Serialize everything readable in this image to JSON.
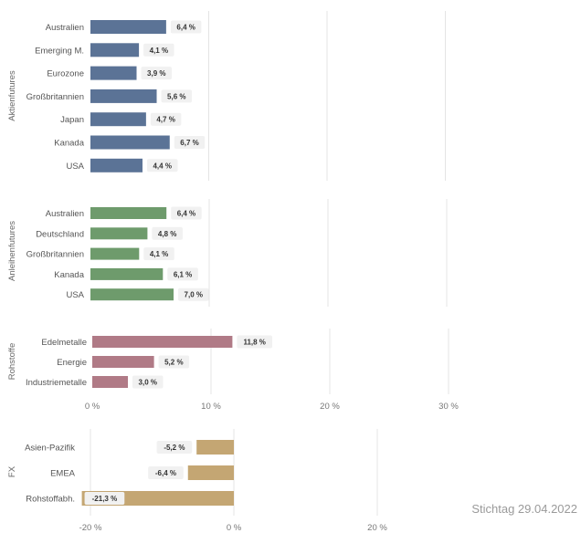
{
  "footnote": "Stichtag 29.04.2022",
  "colors": {
    "Aktienfutures": "#5b7396",
    "Anleihenfutures": "#6e9b6c",
    "Rohstoffe": "#b07a86",
    "FX": "#c4a673",
    "label_bg": "#f1f1f1",
    "grid": "#e4e4e4"
  },
  "chart_data": [
    {
      "type": "bar",
      "orientation": "horizontal",
      "group": "Aktienfutures",
      "categories": [
        "Australien",
        "Emerging M.",
        "Eurozone",
        "Großbritannien",
        "Japan",
        "Kanada",
        "USA"
      ],
      "values": [
        6.4,
        4.1,
        3.9,
        5.6,
        4.7,
        6.7,
        4.4
      ],
      "labels": [
        "6,4 %",
        "4,1 %",
        "3,9 %",
        "5,6 %",
        "4,7 %",
        "6,7 %",
        "4,4 %"
      ],
      "xlim": [
        0,
        30
      ],
      "grid": true
    },
    {
      "type": "bar",
      "orientation": "horizontal",
      "group": "Anleihenfutures",
      "categories": [
        "Australien",
        "Deutschland",
        "Großbritannien",
        "Kanada",
        "USA"
      ],
      "values": [
        6.4,
        4.8,
        4.1,
        6.1,
        7.0
      ],
      "labels": [
        "6,4 %",
        "4,8 %",
        "4,1 %",
        "6,1 %",
        "7,0 %"
      ],
      "xlim": [
        0,
        30
      ],
      "grid": true
    },
    {
      "type": "bar",
      "orientation": "horizontal",
      "group": "Rohstoffe",
      "categories": [
        "Edelmetalle",
        "Energie",
        "Industriemetalle"
      ],
      "values": [
        11.8,
        5.2,
        3.0
      ],
      "labels": [
        "11,8 %",
        "5,2 %",
        "3,0 %"
      ],
      "xlim": [
        0,
        30
      ],
      "xticks": [
        0,
        10,
        20,
        30
      ],
      "xtick_labels": [
        "0 %",
        "10 %",
        "20 %",
        "30 %"
      ],
      "grid": true
    },
    {
      "type": "bar",
      "orientation": "horizontal",
      "group": "FX",
      "categories": [
        "Asien-Pazifik",
        "EMEA",
        "Rohstoffabh."
      ],
      "values": [
        -5.2,
        -6.4,
        -21.3
      ],
      "labels": [
        "-5,2 %",
        "-6,4 %",
        "-21,3 %"
      ],
      "xlim": [
        -20,
        20
      ],
      "xticks": [
        -20,
        0,
        20
      ],
      "xtick_labels": [
        "-20 %",
        "0 %",
        "20 %"
      ],
      "grid": true
    }
  ]
}
